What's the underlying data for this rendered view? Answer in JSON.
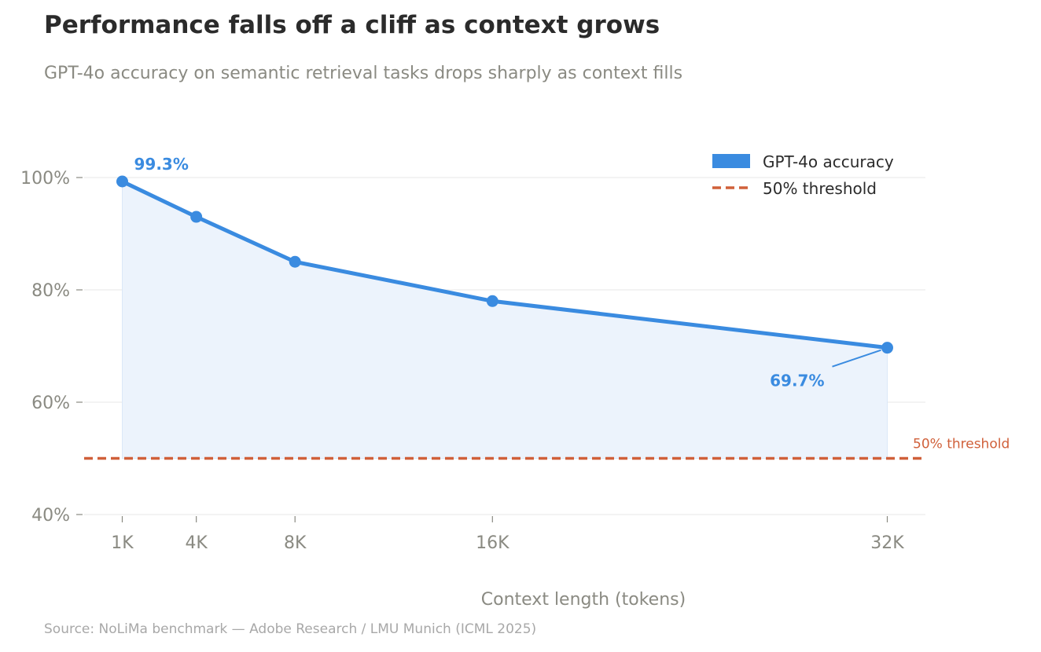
{
  "title": "Performance falls off a cliff as context grows",
  "subtitle": "GPT-4o accuracy on semantic retrieval tasks drops sharply as context fills",
  "source": "Source: NoLiMa benchmark — Adobe Research / LMU Munich (ICML 2025)",
  "colors": {
    "series": "#3a8be0",
    "fill": "#ecf3fc",
    "threshold": "#d0603a",
    "grid": "#ececec"
  },
  "chart_data": {
    "type": "line",
    "title": "Performance falls off a cliff as context grows",
    "xlabel": "Context length (tokens)",
    "ylabel": "",
    "x": [
      1,
      4,
      8,
      16,
      32
    ],
    "x_tick_labels": [
      "1K",
      "4K",
      "8K",
      "16K",
      "32K"
    ],
    "ylim": [
      40,
      100
    ],
    "y_ticks": [
      40,
      60,
      80,
      100
    ],
    "y_tick_labels": [
      "40%",
      "60%",
      "80%",
      "100%"
    ],
    "grid": true,
    "series": [
      {
        "name": "GPT-4o accuracy",
        "values": [
          99.3,
          93,
          85,
          78,
          69.7
        ]
      }
    ],
    "threshold": {
      "value": 50,
      "name": "50% threshold",
      "label": "50% threshold"
    },
    "annotations": [
      {
        "index": 0,
        "text": "99.3%"
      },
      {
        "index": 4,
        "text": "69.7%"
      }
    ],
    "legend": {
      "position": "top-right",
      "entries": [
        "GPT-4o accuracy",
        "50% threshold"
      ]
    }
  }
}
